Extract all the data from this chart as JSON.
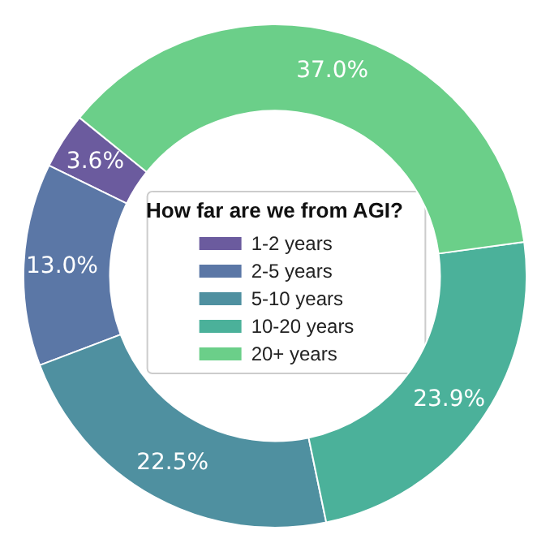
{
  "chart_data": {
    "type": "donut",
    "legend_title": "How far are we from AGI?",
    "categories": [
      "1-2 years",
      "2-5 years",
      "5-10 years",
      "10-20 years",
      "20+ years"
    ],
    "values": [
      3.6,
      13.0,
      22.5,
      23.9,
      37.0
    ],
    "colors": [
      "#6b5b9e",
      "#5b77a6",
      "#4f90a0",
      "#4bb19a",
      "#6bcf89"
    ],
    "value_labels": [
      "3.6%",
      "13.0%",
      "22.5%",
      "23.9%",
      "37.0%"
    ],
    "legend": "center"
  }
}
